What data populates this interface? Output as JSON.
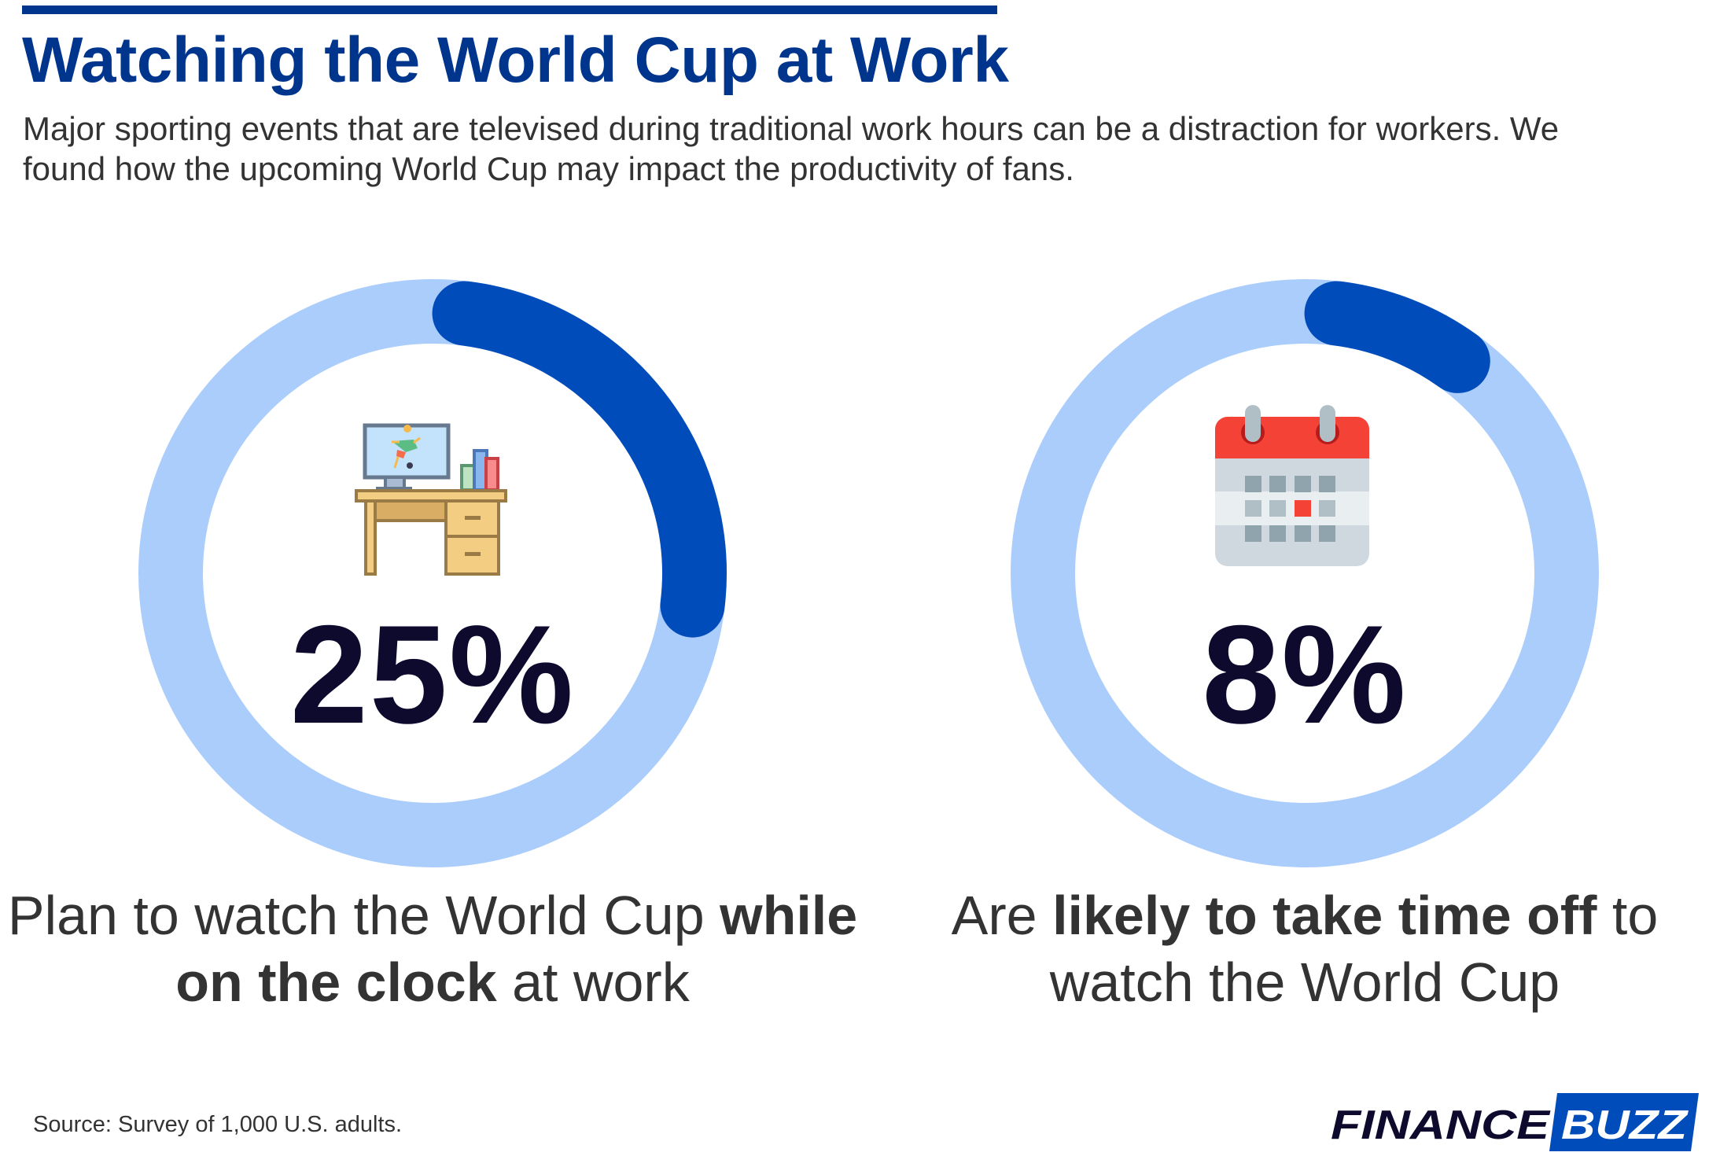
{
  "header": {
    "title": "Watching the World Cup at Work",
    "subtitle": "Major sporting events that are televised during traditional work hours can be a distraction for workers. We found how the upcoming World Cup may impact the productivity of fans."
  },
  "chart_data": [
    {
      "type": "pie",
      "variant": "donut",
      "value": 25,
      "unit": "%",
      "label_text": "25%",
      "caption": {
        "pre": "Plan to watch the World Cup ",
        "bold": "while on the clock",
        "post": " at work"
      },
      "icon": "desk-computer-soccer-icon",
      "colors": {
        "filled": "#004cba",
        "track": "#abcdfc"
      }
    },
    {
      "type": "pie",
      "variant": "donut",
      "value": 8,
      "unit": "%",
      "label_text": "8%",
      "caption": {
        "pre": "Are ",
        "bold": "likely to take time off",
        "post": " to watch the World Cup"
      },
      "icon": "calendar-icon",
      "colors": {
        "filled": "#004cba",
        "track": "#abcdfc"
      }
    }
  ],
  "footer": {
    "source": "Source: Survey of 1,000 U.S. adults.",
    "logo": {
      "part1": "FINANCE",
      "part2": "BUZZ"
    }
  }
}
